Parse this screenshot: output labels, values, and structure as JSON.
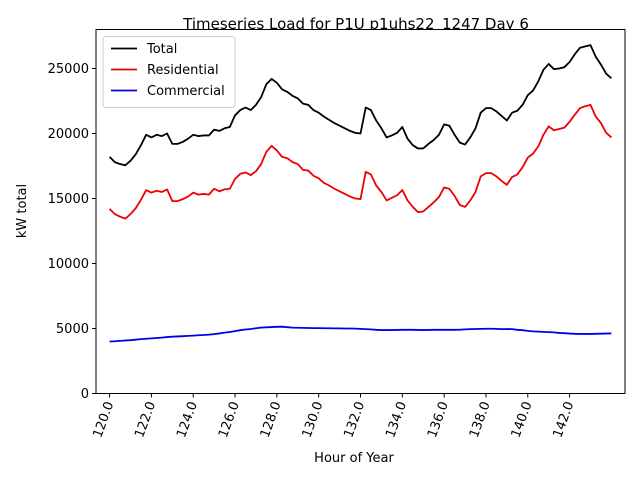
{
  "chart_data": {
    "type": "line",
    "title": "Timeseries Load for P1U p1uhs22_1247  Day 6",
    "xlabel": "Hour of Year",
    "ylabel": "kW total",
    "xlim": [
      119.35,
      144.65
    ],
    "ylim": [
      0,
      28000
    ],
    "x_ticks": [
      120,
      122,
      124,
      126,
      128,
      130,
      132,
      134,
      136,
      138,
      140,
      142
    ],
    "x_tick_labels": [
      "120.0",
      "122.0",
      "124.0",
      "126.0",
      "128.0",
      "130.0",
      "132.0",
      "134.0",
      "136.0",
      "138.0",
      "140.0",
      "142.0"
    ],
    "y_ticks": [
      0,
      5000,
      10000,
      15000,
      20000,
      25000
    ],
    "y_tick_labels": [
      "0",
      "5000",
      "10000",
      "15000",
      "20000",
      "25000"
    ],
    "legend_position": "top-left",
    "x_start": 120,
    "x_step": 0.25,
    "series": [
      {
        "name": "Total",
        "color": "#000000",
        "values": [
          18200,
          17800,
          17650,
          17550,
          17900,
          18400,
          19100,
          19900,
          19700,
          19900,
          19800,
          20000,
          19200,
          19200,
          19350,
          19600,
          19900,
          19800,
          19850,
          19850,
          20300,
          20200,
          20400,
          20500,
          21400,
          21800,
          22000,
          21800,
          22200,
          22800,
          23800,
          24200,
          23900,
          23400,
          23200,
          22900,
          22700,
          22300,
          22200,
          21800,
          21600,
          21300,
          21050,
          20800,
          20600,
          20400,
          20200,
          20050,
          20000,
          22000,
          21800,
          21000,
          20400,
          19700,
          19850,
          20050,
          20500,
          19600,
          19100,
          18850,
          18850,
          19200,
          19500,
          19900,
          20700,
          20600,
          19900,
          19300,
          19150,
          19700,
          20400,
          21600,
          21950,
          21950,
          21700,
          21350,
          21000,
          21600,
          21750,
          22200,
          22950,
          23300,
          24000,
          24900,
          25350,
          24950,
          25000,
          25100,
          25500,
          26100,
          26600,
          26700,
          26800,
          25900,
          25300,
          24600,
          24250
        ]
      },
      {
        "name": "Residential",
        "color": "#ee0000",
        "values": [
          14200,
          13800,
          13600,
          13450,
          13800,
          14250,
          14900,
          15650,
          15450,
          15600,
          15500,
          15700,
          14800,
          14800,
          14950,
          15150,
          15450,
          15300,
          15350,
          15300,
          15750,
          15550,
          15700,
          15750,
          16500,
          16900,
          17000,
          16800,
          17100,
          17650,
          18600,
          19050,
          18700,
          18200,
          18100,
          17800,
          17650,
          17200,
          17150,
          16750,
          16550,
          16200,
          16000,
          15750,
          15550,
          15350,
          15150,
          15000,
          14950,
          17050,
          16850,
          16000,
          15500,
          14850,
          15050,
          15250,
          15650,
          14850,
          14350,
          13950,
          14000,
          14350,
          14700,
          15100,
          15850,
          15750,
          15200,
          14500,
          14350,
          14850,
          15500,
          16700,
          16950,
          16950,
          16700,
          16350,
          16050,
          16650,
          16850,
          17400,
          18150,
          18450,
          19000,
          19900,
          20550,
          20250,
          20350,
          20450,
          20900,
          21450,
          21950,
          22100,
          22200,
          21300,
          20800,
          20050,
          19700
        ]
      },
      {
        "name": "Commercial",
        "color": "#0000ee",
        "values": [
          4000,
          4020,
          4050,
          4080,
          4100,
          4140,
          4180,
          4210,
          4240,
          4270,
          4300,
          4340,
          4370,
          4390,
          4410,
          4430,
          4450,
          4480,
          4500,
          4530,
          4570,
          4620,
          4680,
          4730,
          4800,
          4870,
          4920,
          4960,
          5020,
          5070,
          5090,
          5110,
          5130,
          5140,
          5100,
          5070,
          5060,
          5050,
          5040,
          5030,
          5030,
          5020,
          5020,
          5010,
          5010,
          5000,
          5000,
          4990,
          4970,
          4950,
          4930,
          4900,
          4880,
          4880,
          4880,
          4890,
          4900,
          4900,
          4900,
          4890,
          4880,
          4890,
          4900,
          4900,
          4900,
          4900,
          4900,
          4910,
          4930,
          4950,
          4960,
          4970,
          4980,
          4980,
          4970,
          4950,
          4960,
          4950,
          4900,
          4870,
          4820,
          4780,
          4760,
          4740,
          4720,
          4700,
          4660,
          4640,
          4610,
          4590,
          4580,
          4580,
          4580,
          4590,
          4600,
          4610,
          4620
        ]
      }
    ]
  }
}
